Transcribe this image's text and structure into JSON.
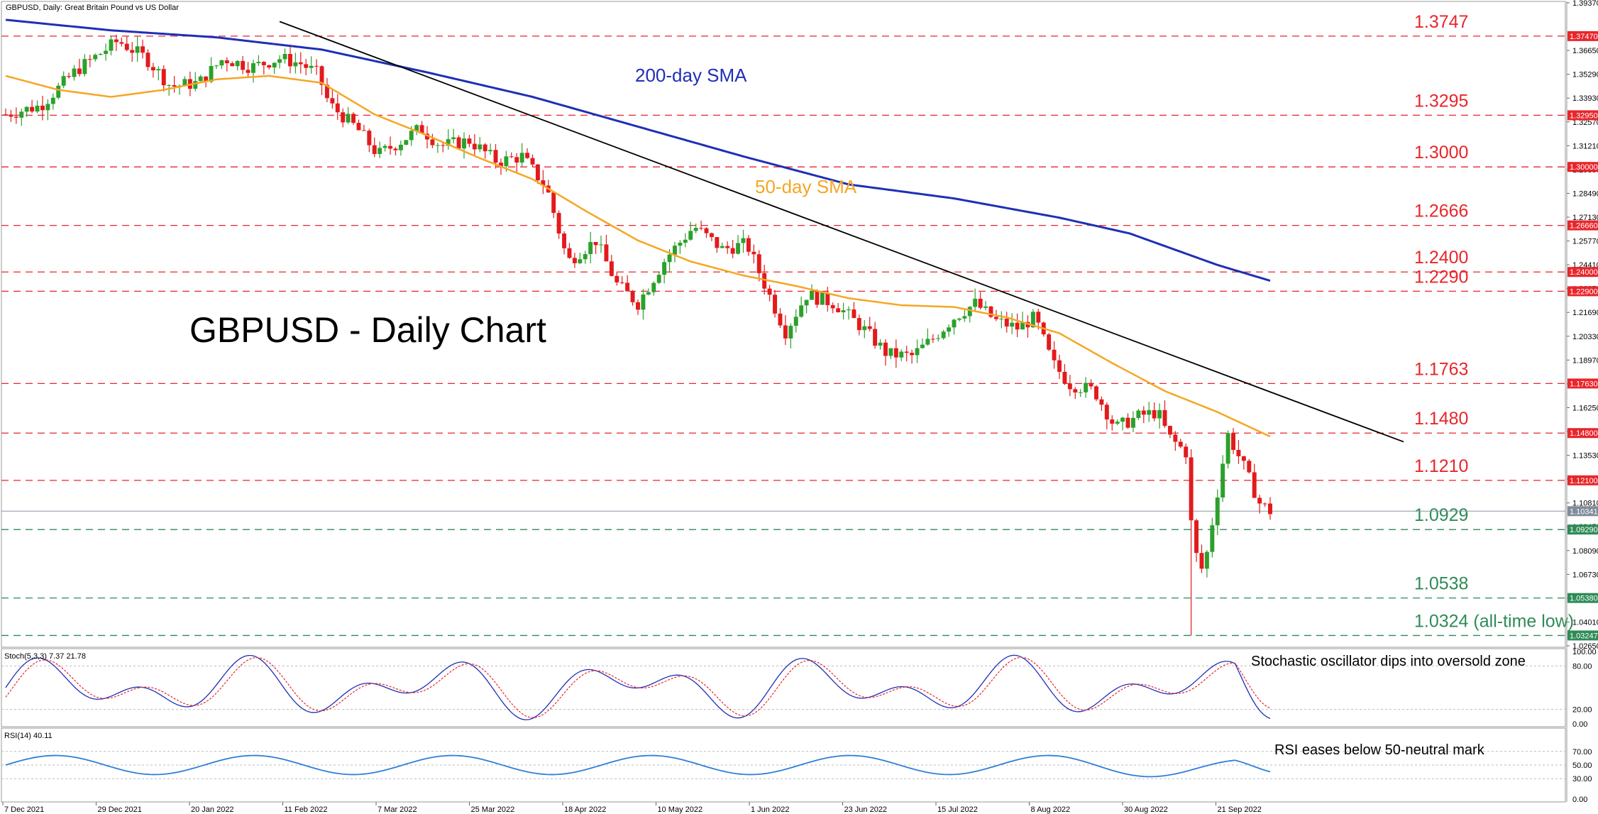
{
  "window": {
    "header": "GBPUSD, Daily:  Great Britain Pound vs US Dollar"
  },
  "overlay_title": "GBPUSD - Daily Chart",
  "colors": {
    "bull": "#2ca02c",
    "bear": "#e31a1c",
    "sma50": "#f5a623",
    "sma200": "#1f2fb5",
    "trendline": "#000000",
    "level_red": "#e8262b",
    "level_green": "#2e8b57",
    "stoch_main": "#1f2fb5",
    "stoch_signal": "#e8262b",
    "rsi": "#2f7fd6",
    "current_price_bg": "#7f8c99"
  },
  "price_axis": {
    "ticks": [
      "1.39370",
      "1.36650",
      "1.35290",
      "1.33930",
      "1.32570",
      "1.31210",
      "1.29850",
      "1.28490",
      "1.27130",
      "1.25770",
      "1.24410",
      "1.23050",
      "1.21690",
      "1.20330",
      "1.18970",
      "1.17610",
      "1.16250",
      "1.14890",
      "1.13530",
      "1.12170",
      "1.10810",
      "1.09450",
      "1.08090",
      "1.06730",
      "1.05370",
      "1.04010",
      "1.02650"
    ]
  },
  "levels": [
    {
      "value": 1.3747,
      "label": "1.3747",
      "tag": "1.37470",
      "kind": "red"
    },
    {
      "value": 1.3295,
      "label": "1.3295",
      "tag": "1.32950",
      "kind": "red"
    },
    {
      "value": 1.3,
      "label": "1.3000",
      "tag": "1.30000",
      "kind": "red"
    },
    {
      "value": 1.2666,
      "label": "1.2666",
      "tag": "1.26660",
      "kind": "red"
    },
    {
      "value": 1.24,
      "label": "1.2400",
      "tag": "1.24000",
      "kind": "red"
    },
    {
      "value": 1.229,
      "label": "1.2290",
      "tag": "1.22900",
      "kind": "red"
    },
    {
      "value": 1.1763,
      "label": "1.1763",
      "tag": "1.17630",
      "kind": "red"
    },
    {
      "value": 1.148,
      "label": "1.1480",
      "tag": "1.14800",
      "kind": "red"
    },
    {
      "value": 1.121,
      "label": "1.1210",
      "tag": "1.12100",
      "kind": "red"
    },
    {
      "value": 1.0929,
      "label": "1.0929",
      "tag": "1.09290",
      "kind": "green"
    },
    {
      "value": 1.0538,
      "label": "1.0538",
      "tag": "1.05380",
      "kind": "green"
    },
    {
      "value": 1.0324,
      "label": "1.0324 (all-time low)",
      "tag": "1.03247",
      "kind": "green"
    }
  ],
  "current_price": {
    "value": 1.1034,
    "tag": "1.10341"
  },
  "annotations": {
    "sma200_label": "200-day SMA",
    "sma50_label": "50-day SMA",
    "stoch_note": "Stochastic oscillator dips into oversold zone",
    "rsi_note": "RSI eases below 50-neutral mark"
  },
  "stoch": {
    "header": "Stoch(5,3,3) 7.37 21.78",
    "ticks": [
      "100.00",
      "80.00",
      "20.00",
      "0.00"
    ]
  },
  "rsi": {
    "header": "RSI(14) 40.11",
    "ticks": [
      "70.00",
      "50.00",
      "30.00",
      "0.00"
    ]
  },
  "x_axis": {
    "labels": [
      "7 Dec 2021",
      "29 Dec 2021",
      "20 Jan 2022",
      "11 Feb 2022",
      "7 Mar 2022",
      "25 Mar 2022",
      "18 Apr 2022",
      "10 May 2022",
      "1 Jun 2022",
      "23 Jun 2022",
      "15 Jul 2022",
      "8 Aug 2022",
      "30 Aug 2022",
      "21 Sep 2022"
    ]
  },
  "chart_data": {
    "type": "candlestick",
    "title": "GBPUSD - Daily Chart",
    "ylim": [
      1.0265,
      1.3937
    ],
    "close_path": [
      [
        0,
        1.33
      ],
      [
        10,
        1.335
      ],
      [
        20,
        1.355
      ],
      [
        32,
        1.372
      ],
      [
        40,
        1.362
      ],
      [
        47,
        1.346
      ],
      [
        55,
        1.348
      ],
      [
        62,
        1.362
      ],
      [
        70,
        1.357
      ],
      [
        78,
        1.362
      ],
      [
        84,
        1.359
      ],
      [
        89,
        1.353
      ],
      [
        92,
        1.336
      ],
      [
        100,
        1.322
      ],
      [
        106,
        1.307
      ],
      [
        112,
        1.314
      ],
      [
        118,
        1.322
      ],
      [
        124,
        1.312
      ],
      [
        132,
        1.315
      ],
      [
        140,
        1.303
      ],
      [
        147,
        1.306
      ],
      [
        154,
        1.288
      ],
      [
        160,
        1.246
      ],
      [
        168,
        1.258
      ],
      [
        174,
        1.233
      ],
      [
        180,
        1.222
      ],
      [
        188,
        1.248
      ],
      [
        196,
        1.266
      ],
      [
        204,
        1.253
      ],
      [
        211,
        1.256
      ],
      [
        218,
        1.224
      ],
      [
        222,
        1.206
      ],
      [
        228,
        1.227
      ],
      [
        236,
        1.222
      ],
      [
        244,
        1.208
      ],
      [
        251,
        1.193
      ],
      [
        258,
        1.192
      ],
      [
        264,
        1.202
      ],
      [
        270,
        1.214
      ],
      [
        276,
        1.222
      ],
      [
        282,
        1.212
      ],
      [
        288,
        1.208
      ],
      [
        293,
        1.214
      ],
      [
        298,
        1.188
      ],
      [
        303,
        1.176
      ],
      [
        310,
        1.172
      ],
      [
        316,
        1.151
      ],
      [
        323,
        1.158
      ],
      [
        328,
        1.16
      ],
      [
        331,
        1.146
      ],
      [
        336,
        1.137
      ],
      [
        338,
        1.083
      ],
      [
        341,
        1.068
      ],
      [
        346,
        1.126
      ],
      [
        348,
        1.147
      ],
      [
        352,
        1.131
      ],
      [
        357,
        1.108
      ],
      [
        360,
        1.1034
      ]
    ],
    "sma50_path": [
      [
        0,
        1.352
      ],
      [
        15,
        1.344
      ],
      [
        30,
        1.34
      ],
      [
        45,
        1.344
      ],
      [
        60,
        1.35
      ],
      [
        75,
        1.352
      ],
      [
        90,
        1.348
      ],
      [
        105,
        1.33
      ],
      [
        120,
        1.318
      ],
      [
        135,
        1.305
      ],
      [
        150,
        1.293
      ],
      [
        165,
        1.275
      ],
      [
        180,
        1.258
      ],
      [
        195,
        1.246
      ],
      [
        210,
        1.238
      ],
      [
        225,
        1.232
      ],
      [
        240,
        1.225
      ],
      [
        255,
        1.221
      ],
      [
        270,
        1.22
      ],
      [
        285,
        1.214
      ],
      [
        300,
        1.205
      ],
      [
        315,
        1.188
      ],
      [
        330,
        1.172
      ],
      [
        345,
        1.16
      ],
      [
        360,
        1.146
      ]
    ],
    "sma200_path": [
      [
        0,
        1.384
      ],
      [
        30,
        1.378
      ],
      [
        60,
        1.374
      ],
      [
        90,
        1.367
      ],
      [
        120,
        1.354
      ],
      [
        150,
        1.34
      ],
      [
        180,
        1.323
      ],
      [
        210,
        1.306
      ],
      [
        240,
        1.29
      ],
      [
        270,
        1.282
      ],
      [
        300,
        1.271
      ],
      [
        320,
        1.262
      ],
      [
        345,
        1.244
      ],
      [
        360,
        1.235
      ]
    ],
    "trendline": [
      [
        78,
        1.383
      ],
      [
        398,
        1.143
      ]
    ],
    "extremes": [
      {
        "i": 338,
        "low": 1.0324
      }
    ],
    "stoch_last": {
      "k": 7.37,
      "d": 21.78
    },
    "rsi_last": 40.11
  }
}
